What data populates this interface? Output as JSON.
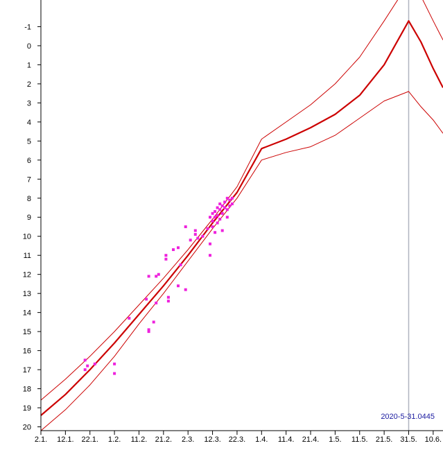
{
  "chart_data": {
    "type": "scatter",
    "stamp": "2020-5-31.0445",
    "colors": {
      "points": "#ee22dd",
      "curves": "#cc0000",
      "marker_line": "#b0b4c0",
      "axes": "#000000",
      "stamp": "#1a1aa0"
    },
    "x_axis": {
      "type": "date",
      "range": [
        "2020-01-02",
        "2020-06-14"
      ],
      "ticks": [
        {
          "date": "2020-01-02",
          "label": "2.1."
        },
        {
          "date": "2020-01-12",
          "label": "12.1."
        },
        {
          "date": "2020-01-22",
          "label": "22.1."
        },
        {
          "date": "2020-02-01",
          "label": "1.2."
        },
        {
          "date": "2020-02-11",
          "label": "11.2."
        },
        {
          "date": "2020-02-21",
          "label": "21.2."
        },
        {
          "date": "2020-03-02",
          "label": "2.3."
        },
        {
          "date": "2020-03-12",
          "label": "12.3."
        },
        {
          "date": "2020-03-22",
          "label": "22.3."
        },
        {
          "date": "2020-04-01",
          "label": "1.4."
        },
        {
          "date": "2020-04-11",
          "label": "11.4."
        },
        {
          "date": "2020-04-21",
          "label": "21.4."
        },
        {
          "date": "2020-05-01",
          "label": "1.5."
        },
        {
          "date": "2020-05-11",
          "label": "11.5."
        },
        {
          "date": "2020-05-21",
          "label": "21.5."
        },
        {
          "date": "2020-05-31",
          "label": "31.5."
        },
        {
          "date": "2020-06-10",
          "label": "10.6."
        }
      ]
    },
    "y_axis": {
      "inverted": true,
      "range": [
        -2.4,
        20.2
      ],
      "ticks": [
        {
          "value": -1,
          "label": "-1"
        },
        {
          "value": 0,
          "label": "0"
        },
        {
          "value": 1,
          "label": "1"
        },
        {
          "value": 2,
          "label": "2"
        },
        {
          "value": 3,
          "label": "3"
        },
        {
          "value": 4,
          "label": "4"
        },
        {
          "value": 5,
          "label": "5"
        },
        {
          "value": 6,
          "label": "6"
        },
        {
          "value": 7,
          "label": "7"
        },
        {
          "value": 8,
          "label": "8"
        },
        {
          "value": 9,
          "label": "9"
        },
        {
          "value": 10,
          "label": "10"
        },
        {
          "value": 11,
          "label": "11"
        },
        {
          "value": 12,
          "label": "12"
        },
        {
          "value": 13,
          "label": "13"
        },
        {
          "value": 14,
          "label": "14"
        },
        {
          "value": 15,
          "label": "15"
        },
        {
          "value": 16,
          "label": "16"
        },
        {
          "value": 17,
          "label": "17"
        },
        {
          "value": 18,
          "label": "18"
        },
        {
          "value": 19,
          "label": "19"
        },
        {
          "value": 20,
          "label": "20"
        }
      ]
    },
    "marker_date": "2020-05-31",
    "curves": [
      {
        "role": "central",
        "points": [
          [
            "2020-01-02",
            19.4
          ],
          [
            "2020-01-12",
            18.3
          ],
          [
            "2020-01-22",
            17.0
          ],
          [
            "2020-02-01",
            15.6
          ],
          [
            "2020-02-11",
            14.1
          ],
          [
            "2020-02-21",
            12.6
          ],
          [
            "2020-03-02",
            11.0
          ],
          [
            "2020-03-12",
            9.3
          ],
          [
            "2020-03-22",
            7.7
          ],
          [
            "2020-04-01",
            5.4
          ],
          [
            "2020-04-11",
            4.9
          ],
          [
            "2020-04-21",
            4.3
          ],
          [
            "2020-05-01",
            3.6
          ],
          [
            "2020-05-11",
            2.6
          ],
          [
            "2020-05-21",
            1.0
          ],
          [
            "2020-05-31",
            -1.3
          ],
          [
            "2020-06-05",
            -0.2
          ],
          [
            "2020-06-10",
            1.2
          ],
          [
            "2020-06-14",
            2.2
          ]
        ]
      },
      {
        "role": "upper",
        "points": [
          [
            "2020-01-02",
            18.6
          ],
          [
            "2020-01-12",
            17.5
          ],
          [
            "2020-01-22",
            16.3
          ],
          [
            "2020-02-01",
            15.0
          ],
          [
            "2020-02-11",
            13.6
          ],
          [
            "2020-02-21",
            12.2
          ],
          [
            "2020-03-02",
            10.7
          ],
          [
            "2020-03-12",
            9.1
          ],
          [
            "2020-03-22",
            7.4
          ],
          [
            "2020-04-01",
            4.9
          ],
          [
            "2020-04-11",
            4.0
          ],
          [
            "2020-04-21",
            3.1
          ],
          [
            "2020-05-01",
            2.0
          ],
          [
            "2020-05-11",
            0.6
          ],
          [
            "2020-05-21",
            -1.3
          ],
          [
            "2020-05-31",
            -3.3
          ],
          [
            "2020-06-05",
            -2.6
          ],
          [
            "2020-06-10",
            -1.3
          ],
          [
            "2020-06-14",
            -0.3
          ]
        ]
      },
      {
        "role": "lower",
        "points": [
          [
            "2020-01-02",
            20.2
          ],
          [
            "2020-01-12",
            19.1
          ],
          [
            "2020-01-22",
            17.8
          ],
          [
            "2020-02-01",
            16.3
          ],
          [
            "2020-02-11",
            14.6
          ],
          [
            "2020-02-21",
            13.0
          ],
          [
            "2020-03-02",
            11.3
          ],
          [
            "2020-03-12",
            9.6
          ],
          [
            "2020-03-22",
            8.0
          ],
          [
            "2020-04-01",
            6.0
          ],
          [
            "2020-04-11",
            5.6
          ],
          [
            "2020-04-21",
            5.3
          ],
          [
            "2020-05-01",
            4.7
          ],
          [
            "2020-05-11",
            3.8
          ],
          [
            "2020-05-21",
            2.9
          ],
          [
            "2020-05-31",
            2.4
          ],
          [
            "2020-06-05",
            3.2
          ],
          [
            "2020-06-10",
            3.9
          ],
          [
            "2020-06-14",
            4.6
          ]
        ]
      }
    ],
    "points": [
      [
        "2020-01-20",
        16.5
      ],
      [
        "2020-01-21",
        16.8
      ],
      [
        "2020-01-24",
        16.7
      ],
      [
        "2020-01-20",
        17.0
      ],
      [
        "2020-02-01",
        16.7
      ],
      [
        "2020-02-01",
        17.2
      ],
      [
        "2020-02-07",
        14.3
      ],
      [
        "2020-02-14",
        13.3
      ],
      [
        "2020-02-15",
        12.1
      ],
      [
        "2020-02-15",
        14.9
      ],
      [
        "2020-02-15",
        15.0
      ],
      [
        "2020-02-17",
        14.5
      ],
      [
        "2020-02-18",
        13.5
      ],
      [
        "2020-02-18",
        12.1
      ],
      [
        "2020-02-19",
        12.0
      ],
      [
        "2020-02-23",
        13.2
      ],
      [
        "2020-02-23",
        13.4
      ],
      [
        "2020-02-22",
        11.0
      ],
      [
        "2020-02-22",
        11.2
      ],
      [
        "2020-02-25",
        10.7
      ],
      [
        "2020-02-27",
        10.6
      ],
      [
        "2020-02-27",
        12.6
      ],
      [
        "2020-02-28",
        11.5
      ],
      [
        "2020-03-01",
        9.5
      ],
      [
        "2020-03-01",
        12.8
      ],
      [
        "2020-03-03",
        10.2
      ],
      [
        "2020-03-05",
        9.7
      ],
      [
        "2020-03-05",
        9.9
      ],
      [
        "2020-03-06",
        10.1
      ],
      [
        "2020-03-08",
        10.0
      ],
      [
        "2020-03-10",
        9.6
      ],
      [
        "2020-03-11",
        10.4
      ],
      [
        "2020-03-11",
        11.0
      ],
      [
        "2020-03-11",
        9.0
      ],
      [
        "2020-03-12",
        8.8
      ],
      [
        "2020-03-12",
        9.2
      ],
      [
        "2020-03-12",
        9.5
      ],
      [
        "2020-03-13",
        9.0
      ],
      [
        "2020-03-13",
        8.7
      ],
      [
        "2020-03-14",
        8.5
      ],
      [
        "2020-03-14",
        8.9
      ],
      [
        "2020-03-15",
        8.3
      ],
      [
        "2020-03-15",
        8.6
      ],
      [
        "2020-03-15",
        9.1
      ],
      [
        "2020-03-16",
        8.4
      ],
      [
        "2020-03-16",
        8.8
      ],
      [
        "2020-03-16",
        9.7
      ],
      [
        "2020-03-17",
        8.5
      ],
      [
        "2020-03-17",
        8.2
      ],
      [
        "2020-03-18",
        8.0
      ],
      [
        "2020-03-18",
        8.6
      ],
      [
        "2020-03-18",
        9.0
      ],
      [
        "2020-03-19",
        8.4
      ],
      [
        "2020-03-19",
        8.1
      ],
      [
        "2020-03-20",
        8.0
      ],
      [
        "2020-03-20",
        8.3
      ],
      [
        "2020-03-14",
        9.3
      ],
      [
        "2020-03-13",
        9.8
      ]
    ]
  }
}
